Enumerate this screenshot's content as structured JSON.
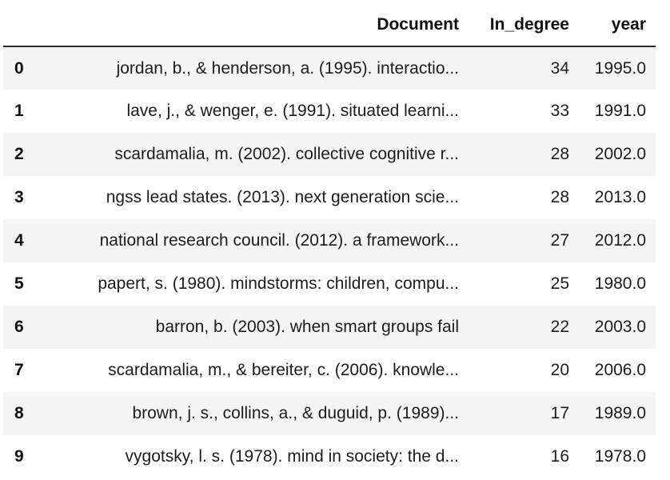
{
  "table": {
    "columns": [
      "",
      "Document",
      "In_degree",
      "year"
    ],
    "rows": [
      {
        "index": "0",
        "document": "jordan, b., & henderson, a. (1995). interactio...",
        "in_degree": "34",
        "year": "1995.0"
      },
      {
        "index": "1",
        "document": "lave, j., & wenger, e. (1991). situated learni...",
        "in_degree": "33",
        "year": "1991.0"
      },
      {
        "index": "2",
        "document": "scardamalia, m. (2002). collective cognitive r...",
        "in_degree": "28",
        "year": "2002.0"
      },
      {
        "index": "3",
        "document": "ngss lead states. (2013). next generation scie...",
        "in_degree": "28",
        "year": "2013.0"
      },
      {
        "index": "4",
        "document": "national research council. (2012). a framework...",
        "in_degree": "27",
        "year": "2012.0"
      },
      {
        "index": "5",
        "document": "papert, s. (1980). mindstorms: children, compu...",
        "in_degree": "25",
        "year": "1980.0"
      },
      {
        "index": "6",
        "document": "barron, b. (2003). when smart groups fail",
        "in_degree": "22",
        "year": "2003.0"
      },
      {
        "index": "7",
        "document": "scardamalia, m., & bereiter, c. (2006). knowle...",
        "in_degree": "20",
        "year": "2006.0"
      },
      {
        "index": "8",
        "document": "brown, j. s., collins, a., & duguid, p. (1989)...",
        "in_degree": "17",
        "year": "1989.0"
      },
      {
        "index": "9",
        "document": "vygotsky, l. s. (1978). mind in society: the d...",
        "in_degree": "16",
        "year": "1978.0"
      }
    ]
  },
  "colors": {
    "stripe": "#f5f5f5",
    "header_rule": "#2b2b2b",
    "text": "#1a1a1a"
  }
}
